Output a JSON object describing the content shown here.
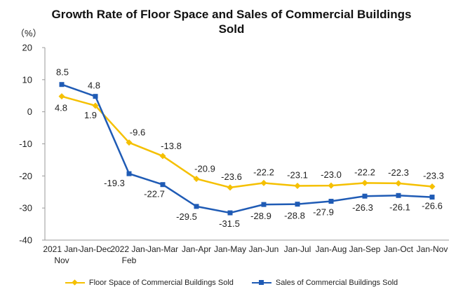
{
  "chart_data": {
    "type": "line",
    "title_lines": [
      "Growth Rate of Floor Space and Sales of Commercial Buildings",
      "Sold"
    ],
    "unit_label": "（%）",
    "categories": [
      [
        "2021 Jan-",
        "Nov"
      ],
      [
        "Jan-Dec"
      ],
      [
        "2022 Jan-",
        "Feb"
      ],
      [
        "Jan-Mar"
      ],
      [
        "Jan-Apr"
      ],
      [
        "Jan-May"
      ],
      [
        "Jan-Jun"
      ],
      [
        "Jan-Jul"
      ],
      [
        "Jan-Aug"
      ],
      [
        "Jan-Sep"
      ],
      [
        "Jan-Oct"
      ],
      [
        "Jan-Nov"
      ]
    ],
    "ylim": [
      -40,
      20
    ],
    "yticks": [
      20,
      10,
      0,
      -10,
      -20,
      -30,
      -40
    ],
    "grid": false,
    "legend_position": "bottom",
    "series": [
      {
        "name": "Floor Space of Commercial Buildings Sold",
        "color": "#F5C000",
        "marker": "diamond",
        "values": [
          4.8,
          1.9,
          -9.6,
          -13.8,
          -20.9,
          -23.6,
          -22.2,
          -23.1,
          -23.0,
          -22.2,
          -22.3,
          -23.3
        ],
        "labels": [
          "4.8",
          "1.9",
          "-9.6",
          "-13.8",
          "-20.9",
          "-23.6",
          "-22.2",
          "-23.1",
          "-23.0",
          "-22.2",
          "-22.3",
          "-23.3"
        ]
      },
      {
        "name": "Sales of Commercial Buildings Sold",
        "color": "#1F5BB5",
        "marker": "square",
        "values": [
          8.5,
          4.8,
          -19.3,
          -22.7,
          -29.5,
          -31.5,
          -28.9,
          -28.8,
          -27.9,
          -26.3,
          -26.1,
          -26.6
        ],
        "labels": [
          "8.5",
          "4.8",
          "-19.3",
          "-22.7",
          "-29.5",
          "-31.5",
          "-28.9",
          "-28.8",
          "-27.9",
          "-26.3",
          "-26.1",
          "-26.6"
        ]
      }
    ]
  }
}
